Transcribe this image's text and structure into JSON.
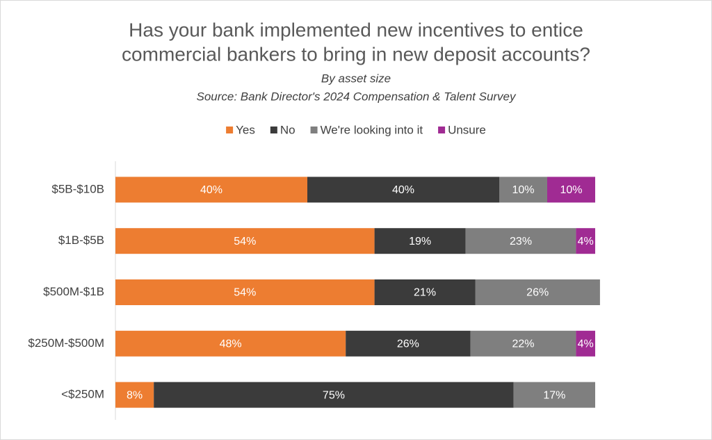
{
  "chart_data": {
    "type": "stacked_bar_horizontal",
    "title": [
      "Has your bank implemented new incentives to entice",
      "commercial bankers to bring in new deposit accounts?"
    ],
    "subtitle": "By asset size",
    "source": "Source: Bank Director's 2024 Compensation & Talent Survey",
    "categories": [
      "$5B-$10B",
      "$1B-$5B",
      "$500M-$1B",
      "$250M-$500M",
      "<$250M"
    ],
    "xlim": [
      0,
      100
    ],
    "legend": "top",
    "series": [
      {
        "name": "Yes",
        "color": "#ed7d31",
        "values": [
          40,
          54,
          54,
          48,
          8
        ],
        "value_labels": [
          "40%",
          "54%",
          "54%",
          "48%",
          "8%"
        ]
      },
      {
        "name": "No",
        "color": "#3b3b3b",
        "values": [
          40,
          19,
          21,
          26,
          75
        ],
        "value_labels": [
          "40%",
          "19%",
          "21%",
          "26%",
          "75%"
        ]
      },
      {
        "name": "We're looking into it",
        "color": "#7f7f7f",
        "values": [
          10,
          23,
          26,
          22,
          17
        ],
        "value_labels": [
          "10%",
          "23%",
          "26%",
          "22%",
          "17%"
        ]
      },
      {
        "name": "Unsure",
        "color": "#a02b93",
        "values": [
          10,
          4,
          null,
          4,
          null
        ],
        "value_labels": [
          "10%",
          "4%",
          null,
          "4%",
          null
        ]
      }
    ]
  }
}
